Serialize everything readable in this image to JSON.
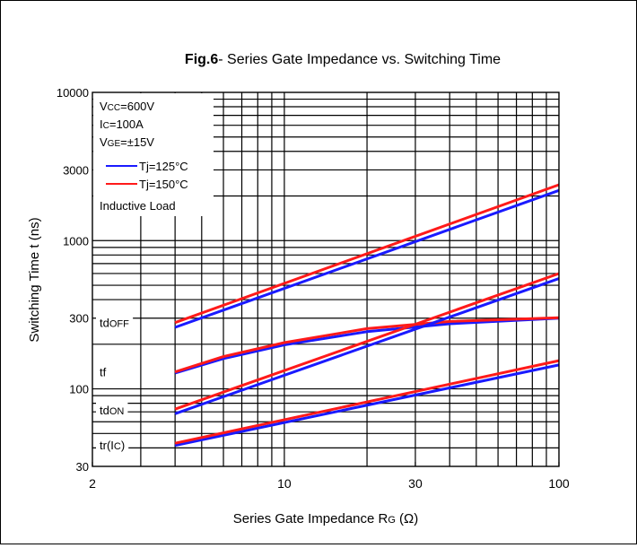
{
  "chart_data": {
    "type": "line",
    "title_bold": "Fig.6",
    "title_rest": "- Series Gate Impedance vs. Switching Time",
    "xlabel": "Series Gate Impedance R",
    "xlabel_sub": "G",
    "xlabel_unit": " (Ω)",
    "ylabel": "Switching Time t  (ns)",
    "xscale": "log",
    "yscale": "log",
    "xlim": [
      2,
      100
    ],
    "ylim": [
      30,
      10000
    ],
    "xticks": [
      2,
      10,
      30,
      100
    ],
    "xtick_labels": [
      "2",
      "10",
      "30",
      "100"
    ],
    "yticks": [
      30,
      100,
      300,
      1000,
      3000,
      10000
    ],
    "ytick_labels": [
      "30",
      "100",
      "300",
      "1000",
      "3000",
      "10000"
    ],
    "grid": true,
    "conditions": [
      {
        "main": "V",
        "sub": "CC",
        "rest": "=600V"
      },
      {
        "main": "I",
        "sub": "C",
        "rest": "=100A"
      },
      {
        "main": "V",
        "sub": "GE",
        "rest": "=±15V"
      }
    ],
    "legend": [
      {
        "label": "Tj=125°C",
        "color": "#1a1aff"
      },
      {
        "label": "Tj=150°C",
        "color": "#ff1a1a"
      }
    ],
    "load_label": "Inductive Load",
    "curve_labels": [
      {
        "main": "td",
        "sub": "OFF",
        "y": 280
      },
      {
        "main": "tf",
        "sub": "",
        "y": 130
      },
      {
        "main": "td",
        "sub": "ON",
        "y": 72
      },
      {
        "main": "tr(I",
        "sub": "C",
        "tail": ")",
        "y": 42
      }
    ],
    "series": [
      {
        "group": "tdOFF",
        "name": "Tj=125°C",
        "color": "#1a1aff",
        "x": [
          4,
          100
        ],
        "y": [
          260,
          2180
        ]
      },
      {
        "group": "tdOFF",
        "name": "Tj=150°C",
        "color": "#ff1a1a",
        "x": [
          4,
          100
        ],
        "y": [
          280,
          2380
        ]
      },
      {
        "group": "tf",
        "name": "Tj=125°C",
        "color": "#1a1aff",
        "x": [
          4,
          6,
          10,
          20,
          40,
          100
        ],
        "y": [
          128,
          160,
          198,
          243,
          275,
          300
        ]
      },
      {
        "group": "tf",
        "name": "Tj=150°C",
        "color": "#ff1a1a",
        "x": [
          4,
          6,
          10,
          20,
          40,
          100
        ],
        "y": [
          130,
          165,
          205,
          255,
          285,
          302
        ]
      },
      {
        "group": "tdON",
        "name": "Tj=125°C",
        "color": "#1a1aff",
        "x": [
          4,
          100
        ],
        "y": [
          68,
          555
        ]
      },
      {
        "group": "tdON",
        "name": "Tj=150°C",
        "color": "#ff1a1a",
        "x": [
          4,
          100
        ],
        "y": [
          73,
          600
        ]
      },
      {
        "group": "tr",
        "name": "Tj=125°C",
        "color": "#1a1aff",
        "x": [
          4,
          100
        ],
        "y": [
          41.5,
          145
        ]
      },
      {
        "group": "tr",
        "name": "Tj=150°C",
        "color": "#ff1a1a",
        "x": [
          4,
          100
        ],
        "y": [
          43,
          155
        ]
      }
    ]
  }
}
